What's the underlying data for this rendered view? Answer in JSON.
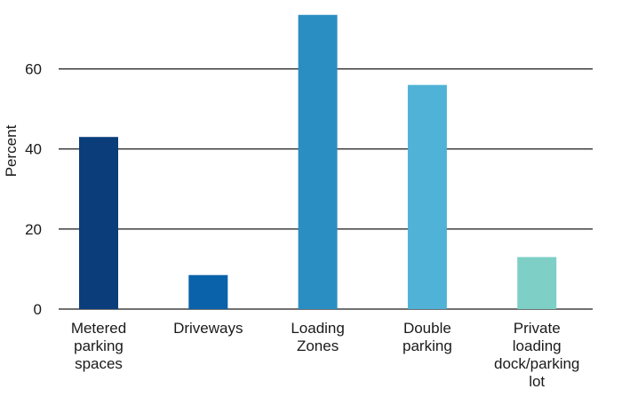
{
  "chart_data": {
    "type": "bar",
    "categories": [
      [
        "Metered",
        "parking",
        "spaces"
      ],
      [
        "Driveways"
      ],
      [
        "Loading",
        "Zones"
      ],
      [
        "Double",
        "parking"
      ],
      [
        "Private",
        "loading",
        "dock/parking",
        "lot"
      ]
    ],
    "values": [
      43,
      8.5,
      73.5,
      56,
      13
    ],
    "bar_colors": [
      "#0a3d7a",
      "#0a62aa",
      "#2a8ec2",
      "#4fb2d6",
      "#7ecfc6"
    ],
    "ylabel": "Percent",
    "yticks": [
      0,
      20,
      40,
      60
    ],
    "ylim": [
      0,
      75
    ],
    "grid": true,
    "legend": "none"
  }
}
